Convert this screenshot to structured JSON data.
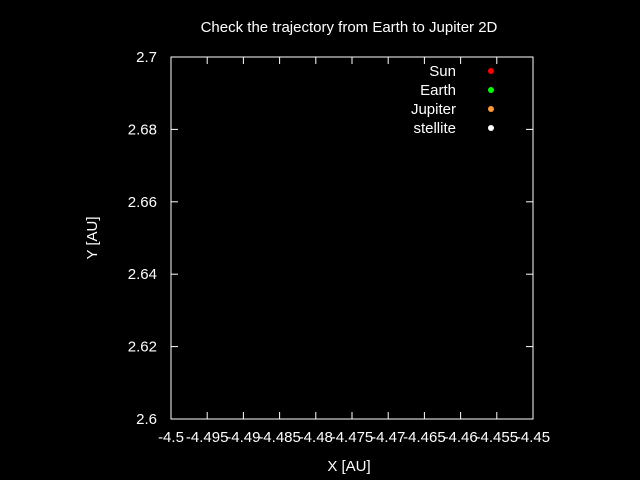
{
  "chart_data": {
    "type": "scatter",
    "title": "Check the trajectory from Earth to Jupiter 2D",
    "xlabel": "X [AU]",
    "ylabel": "Y [AU]",
    "xlim": [
      -4.5,
      -4.45
    ],
    "ylim": [
      2.6,
      2.7
    ],
    "x_ticks": [
      -4.5,
      -4.495,
      -4.49,
      -4.485,
      -4.48,
      -4.475,
      -4.47,
      -4.465,
      -4.46,
      -4.455,
      -4.45
    ],
    "x_tick_labels": [
      "-4.5",
      "-4.495",
      "-4.49",
      "-4.485",
      "-4.48",
      "-4.475",
      "-4.47",
      "-4.465",
      "-4.46",
      "-4.455",
      "-4.45"
    ],
    "y_ticks": [
      2.6,
      2.62,
      2.64,
      2.66,
      2.68,
      2.7
    ],
    "y_tick_labels": [
      "2.6",
      "2.62",
      "2.64",
      "2.66",
      "2.68",
      "2.7"
    ],
    "grid": false,
    "legend_position": "top-right",
    "series": [
      {
        "name": "Sun",
        "color": "#ff0000",
        "points": []
      },
      {
        "name": "Earth",
        "color": "#00ff00",
        "points": []
      },
      {
        "name": "Jupiter",
        "color": "#ff9933",
        "points": []
      },
      {
        "name": "stellite",
        "color": "#ffffff",
        "points": []
      }
    ],
    "background": "#000000",
    "foreground": "#ffffff"
  }
}
